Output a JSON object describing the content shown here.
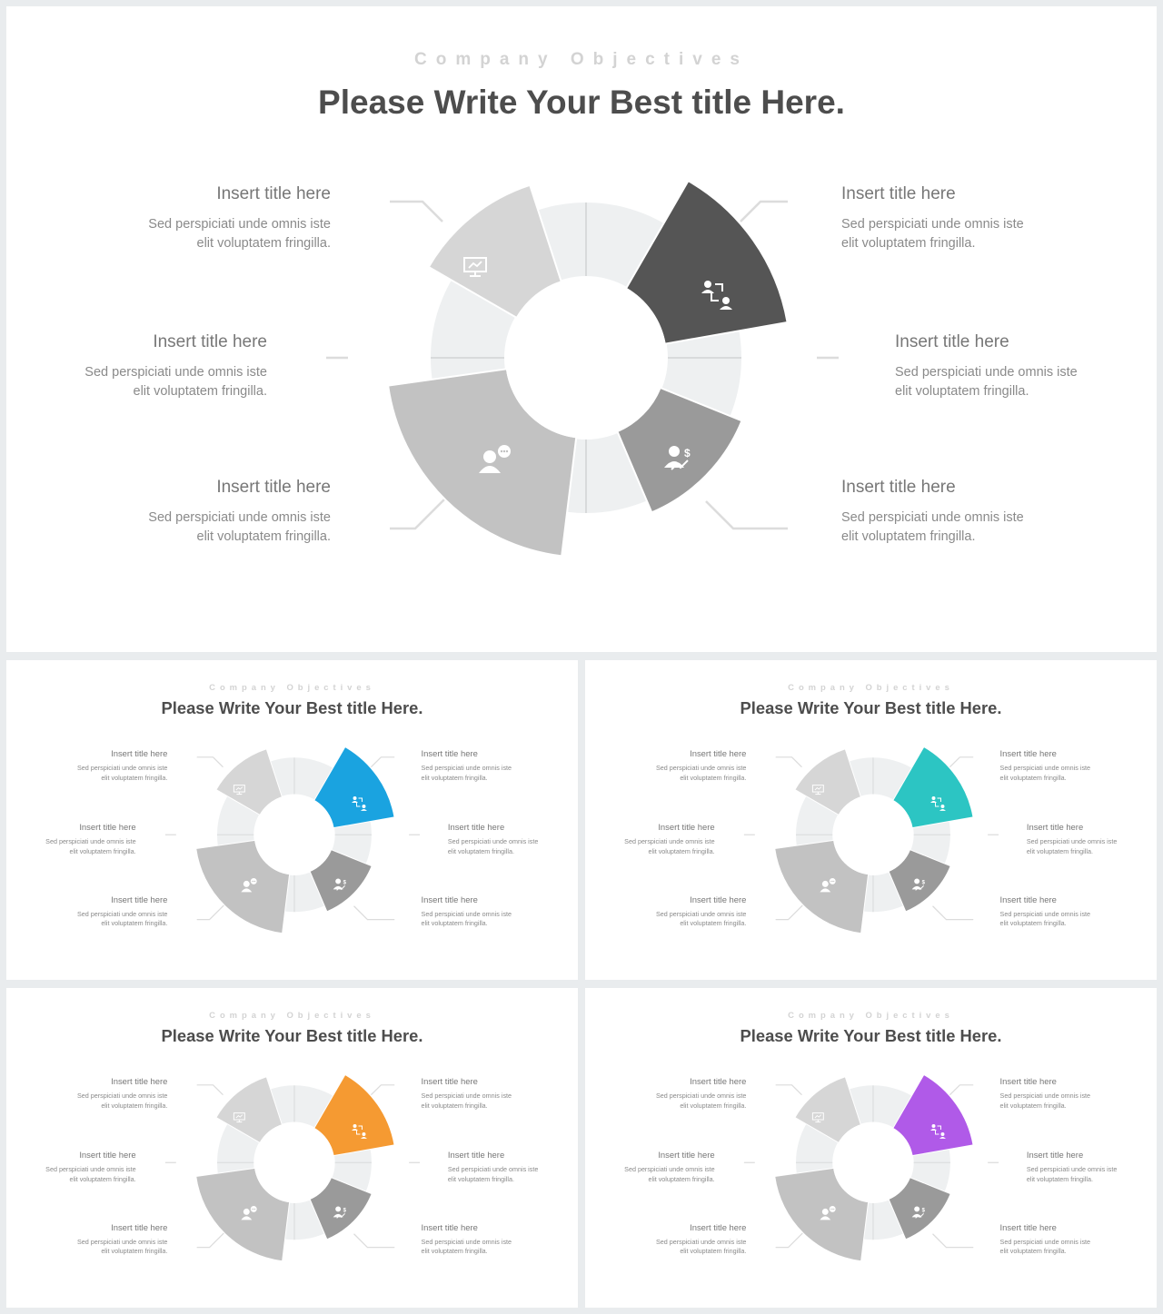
{
  "subtitle": "Company Objectives",
  "title": "Please Write Your Best title Here.",
  "items": [
    {
      "title": "Insert title here",
      "line1": "Sed perspiciati unde omnis iste",
      "line2": "elit voluptatem fringilla."
    },
    {
      "title": "Insert title here",
      "line1": "Sed perspiciati unde omnis iste",
      "line2": "elit voluptatem fringilla."
    },
    {
      "title": "Insert title here",
      "line1": "Sed perspiciati unde omnis iste",
      "line2": "elit voluptatem fringilla."
    },
    {
      "title": "Insert title here",
      "line1": "Sed perspiciati unde omnis iste",
      "line2": "elit voluptatem fringilla."
    },
    {
      "title": "Insert title here",
      "line1": "Sed perspiciati unde omnis iste",
      "line2": "elit voluptatem fringilla."
    },
    {
      "title": "Insert title here",
      "line1": "Sed perspiciati unde omnis iste",
      "line2": "elit voluptatem fringilla."
    }
  ],
  "icons": [
    "presentation-chart-icon",
    "people-exchange-icon",
    "person-chat-icon",
    "person-money-icon"
  ],
  "slides": [
    {
      "name": "slide-main",
      "accent": "#555555"
    },
    {
      "name": "slide-blue",
      "accent": "#1aa3e0"
    },
    {
      "name": "slide-teal",
      "accent": "#2cc5c3"
    },
    {
      "name": "slide-orange",
      "accent": "#f59a32"
    },
    {
      "name": "slide-purple",
      "accent": "#b05ae8"
    }
  ],
  "colors": {
    "ring": "#eef0f1",
    "light_petal": "#d6d6d6",
    "mid_petal": "#c2c2c2",
    "dark_petal": "#9a9a9a",
    "connector": "#dcdcdc"
  }
}
